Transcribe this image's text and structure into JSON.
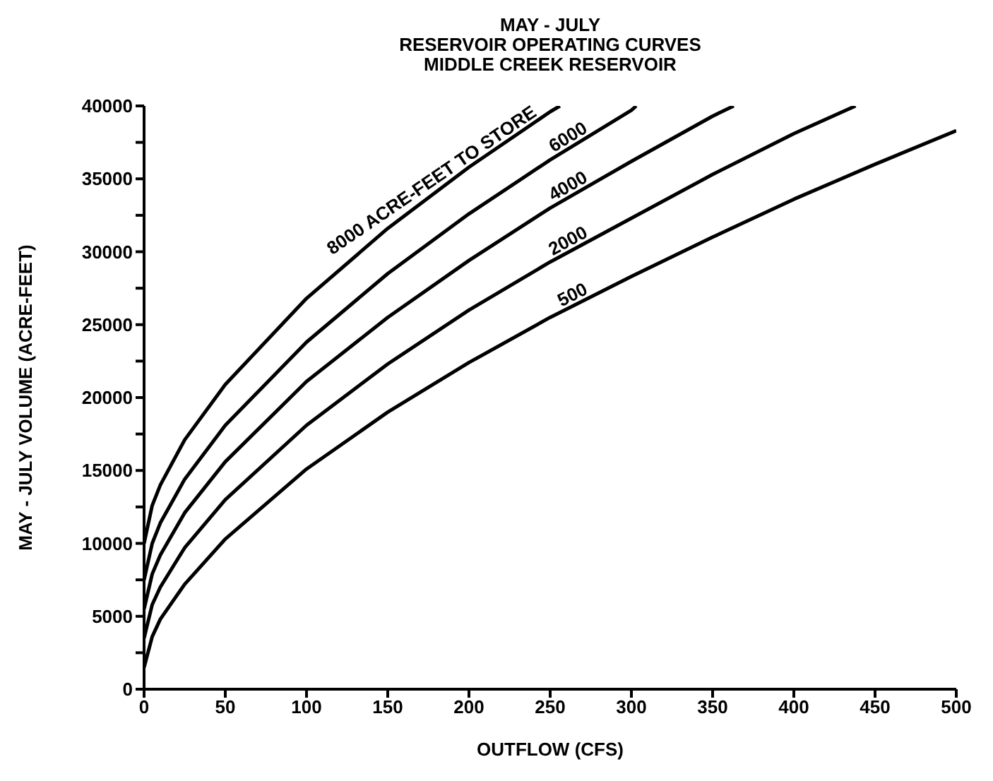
{
  "chart_data": {
    "type": "line",
    "title": "MAY - JULY\nRESERVOIR OPERATING CURVES\nMIDDLE CREEK RESERVOIR",
    "xlabel": "OUTFLOW (CFS)",
    "ylabel": "MAY - JULY VOLUME (ACRE-FEET)",
    "xlim": [
      0,
      500
    ],
    "xticks": [
      0,
      50,
      100,
      150,
      200,
      250,
      300,
      350,
      400,
      450,
      500
    ],
    "ylim": [
      0,
      40000
    ],
    "yticks": [
      0,
      {
        "value": 2500,
        "label": null
      },
      5000,
      {
        "value": 7500,
        "label": null
      },
      10000,
      {
        "value": 12500,
        "label": null
      },
      15000,
      {
        "value": 17500,
        "label": null
      },
      20000,
      {
        "value": 22500,
        "label": null
      },
      25000,
      {
        "value": 27500,
        "label": null
      },
      30000,
      {
        "value": 32500,
        "label": null
      },
      35000,
      {
        "value": 37500,
        "label": null
      },
      40000
    ],
    "grid": false,
    "legend": false,
    "marker": "none",
    "line_style": "solid",
    "series": [
      {
        "name": "8000 ACRE-FEET TO STORE",
        "color": "#000000",
        "x": [
          0,
          5,
          10,
          25,
          50,
          100,
          150,
          200,
          250,
          256
        ],
        "values": [
          10000,
          12600,
          14000,
          17100,
          20900,
          26800,
          31600,
          35800,
          39600,
          40000
        ]
      },
      {
        "name": "6000",
        "color": "#000000",
        "x": [
          0,
          5,
          10,
          25,
          50,
          100,
          150,
          200,
          250,
          300,
          303
        ],
        "values": [
          7500,
          10000,
          11400,
          14400,
          18100,
          23800,
          28500,
          32600,
          36300,
          39700,
          40000
        ]
      },
      {
        "name": "4000",
        "color": "#000000",
        "x": [
          0,
          5,
          10,
          25,
          50,
          100,
          150,
          200,
          250,
          300,
          350,
          363
        ],
        "values": [
          5500,
          7900,
          9200,
          12100,
          15600,
          21100,
          25500,
          29400,
          33000,
          36200,
          39300,
          40000
        ]
      },
      {
        "name": "2000",
        "color": "#000000",
        "x": [
          0,
          5,
          10,
          25,
          50,
          100,
          150,
          200,
          250,
          300,
          350,
          400,
          438
        ],
        "values": [
          3500,
          5800,
          7000,
          9700,
          13000,
          18100,
          22300,
          26000,
          29300,
          32300,
          35300,
          38100,
          40000
        ]
      },
      {
        "name": "500",
        "color": "#000000",
        "x": [
          0,
          5,
          10,
          25,
          50,
          100,
          150,
          200,
          250,
          300,
          350,
          400,
          450,
          500
        ],
        "values": [
          1500,
          3600,
          4800,
          7200,
          10300,
          15100,
          19000,
          22400,
          25500,
          28300,
          31000,
          33600,
          36000,
          38300
        ]
      }
    ]
  }
}
